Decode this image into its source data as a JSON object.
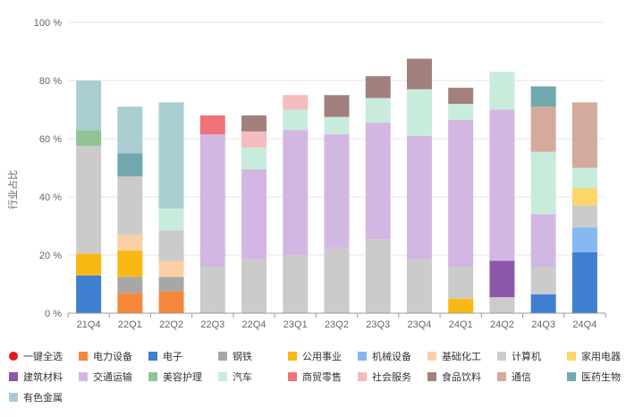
{
  "chart_data": {
    "type": "bar",
    "stacked": true,
    "ylabel": "行业占比",
    "ylim": [
      0,
      100
    ],
    "yticks": [
      0,
      20,
      40,
      60,
      80,
      100
    ],
    "ytick_labels": [
      "0 %",
      "20 %",
      "40 %",
      "60 %",
      "80 %",
      "100 %"
    ],
    "grid": true,
    "legend_position": "bottom",
    "legend_toggle": "一键全选",
    "categories": [
      "21Q4",
      "22Q1",
      "22Q2",
      "22Q3",
      "22Q4",
      "23Q1",
      "23Q2",
      "23Q3",
      "23Q4",
      "24Q1",
      "24Q2",
      "24Q3",
      "24Q4"
    ],
    "series": [
      {
        "name": "电力设备",
        "color": "#f5883a",
        "values": [
          0,
          7,
          7.5,
          0,
          0,
          0,
          0,
          0,
          0,
          0,
          0,
          0,
          0
        ]
      },
      {
        "name": "电子",
        "color": "#3f7fd0",
        "values": [
          13,
          0,
          0,
          0,
          0,
          0,
          0,
          0,
          0,
          0,
          0,
          6.5,
          21
        ]
      },
      {
        "name": "钢铁",
        "color": "#a7a7a7",
        "values": [
          0,
          5.5,
          5,
          0,
          0,
          0,
          0,
          0,
          0,
          0,
          0,
          0,
          0
        ]
      },
      {
        "name": "公用事业",
        "color": "#f9b912",
        "values": [
          7.5,
          9,
          0,
          0,
          0,
          0,
          0,
          0,
          0,
          5,
          0,
          0,
          0
        ]
      },
      {
        "name": "机械设备",
        "color": "#86b8f2",
        "values": [
          0,
          0,
          0,
          0,
          0,
          0,
          0,
          0,
          0,
          0,
          0,
          0,
          8.5
        ]
      },
      {
        "name": "基础化工",
        "color": "#fbcfa5",
        "values": [
          0,
          5.5,
          5.5,
          0,
          0,
          0,
          0,
          0,
          0,
          0,
          0,
          0,
          0
        ]
      },
      {
        "name": "计算机",
        "color": "#cbcbcb",
        "values": [
          37,
          20,
          10.5,
          16,
          18.5,
          20,
          22.5,
          25.5,
          18.5,
          11,
          5.5,
          9.5,
          7.5
        ]
      },
      {
        "name": "家用电器",
        "color": "#fcd66b",
        "values": [
          0,
          0,
          0,
          0,
          0,
          0,
          0,
          0,
          0,
          0,
          0,
          0,
          6
        ]
      },
      {
        "name": "建筑材料",
        "color": "#8c57a8",
        "values": [
          0,
          0,
          0,
          0,
          0,
          0,
          0,
          0,
          0,
          0,
          12.5,
          0,
          0
        ]
      },
      {
        "name": "交通运输",
        "color": "#d2b7e3",
        "values": [
          0,
          0,
          0,
          45.5,
          31,
          43,
          39,
          40,
          42.5,
          50.5,
          52,
          18,
          0
        ]
      },
      {
        "name": "美容护理",
        "color": "#8fc595",
        "values": [
          5.5,
          0,
          0,
          0,
          0,
          0,
          0,
          0,
          0,
          0,
          0,
          0,
          0
        ]
      },
      {
        "name": "汽车",
        "color": "#c8ecdb",
        "values": [
          0,
          0,
          7.5,
          0,
          7.5,
          7,
          6,
          8.5,
          16,
          5.5,
          13,
          21.5,
          7
        ]
      },
      {
        "name": "商贸零售",
        "color": "#f07277",
        "values": [
          0,
          0,
          0,
          6.5,
          0,
          0,
          0,
          0,
          0,
          0,
          0,
          0,
          0
        ]
      },
      {
        "name": "社会服务",
        "color": "#f4bcbc",
        "values": [
          0,
          0,
          0,
          0,
          5.5,
          5,
          0,
          0,
          0,
          0,
          0,
          0,
          0
        ]
      },
      {
        "name": "食品饮料",
        "color": "#a2807d",
        "values": [
          0,
          0,
          0,
          0,
          5.5,
          0,
          7.5,
          7.5,
          10.5,
          5.5,
          0,
          0,
          0
        ]
      },
      {
        "name": "通信",
        "color": "#d3aa9c",
        "values": [
          0,
          0,
          0,
          0,
          0,
          0,
          0,
          0,
          0,
          0,
          0,
          15.5,
          22.5
        ]
      },
      {
        "name": "医药生物",
        "color": "#70a8ae",
        "values": [
          0,
          8,
          0,
          0,
          0,
          0,
          0,
          0,
          0,
          0,
          0,
          7,
          0
        ]
      },
      {
        "name": "有色金属",
        "color": "#a9cdd1",
        "values": [
          17,
          16,
          36.5,
          0,
          0,
          0,
          0,
          0,
          0,
          0,
          0,
          0,
          0
        ]
      }
    ]
  }
}
